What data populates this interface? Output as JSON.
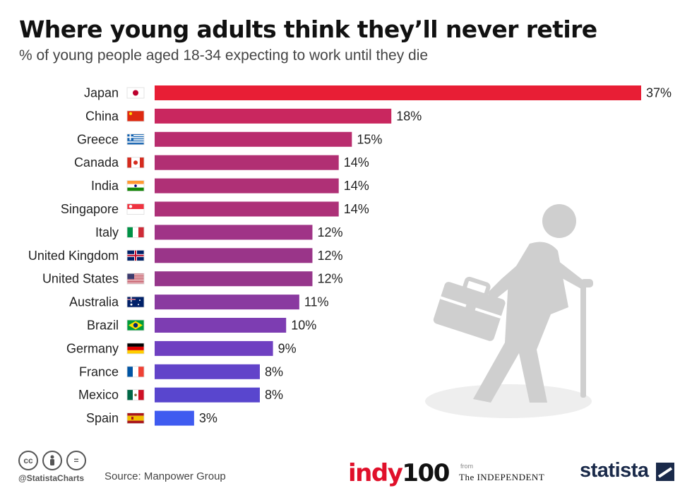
{
  "header": {
    "title": "Where young adults think they’ll never retire",
    "subtitle": "% of young people aged 18-34 expecting to work until they die"
  },
  "chart_data": {
    "type": "bar",
    "orientation": "horizontal",
    "title": "Where young adults think they’ll never retire",
    "subtitle": "% of young people aged 18-34 expecting to work until they die",
    "unit": "%",
    "xlim": [
      0,
      37
    ],
    "grid": false,
    "categories": [
      "Japan",
      "China",
      "Greece",
      "Canada",
      "India",
      "Singapore",
      "Italy",
      "United Kingdom",
      "United States",
      "Australia",
      "Brazil",
      "Germany",
      "France",
      "Mexico",
      "Spain"
    ],
    "values": [
      37,
      18,
      15,
      14,
      14,
      14,
      12,
      12,
      12,
      11,
      10,
      9,
      8,
      8,
      3
    ],
    "labels": [
      "37%",
      "18%",
      "15%",
      "14%",
      "14%",
      "14%",
      "12%",
      "12%",
      "12%",
      "11%",
      "10%",
      "9%",
      "8%",
      "8%",
      "3%"
    ],
    "flags": [
      "japan-flag-icon",
      "china-flag-icon",
      "greece-flag-icon",
      "canada-flag-icon",
      "india-flag-icon",
      "singapore-flag-icon",
      "italy-flag-icon",
      "uk-flag-icon",
      "us-flag-icon",
      "australia-flag-icon",
      "brazil-flag-icon",
      "germany-flag-icon",
      "france-flag-icon",
      "mexico-flag-icon",
      "spain-flag-icon"
    ],
    "colors": [
      "#e81e35",
      "#c9275f",
      "#b92d6e",
      "#b12f73",
      "#af3076",
      "#ad3178",
      "#a03487",
      "#9a3589",
      "#96368b",
      "#8a3aa0",
      "#7d3db2",
      "#6f40c1",
      "#6243c9",
      "#5946ce",
      "#3f5bf0"
    ]
  },
  "footer": {
    "cc_icons": [
      "cc",
      "by",
      "="
    ],
    "handle": "@StatistaCharts",
    "source": "Source: Manpower Group",
    "indy_text": "indy",
    "indy_num": "100",
    "from": "from",
    "independent": "The INDEPENDENT",
    "statista": "statista"
  }
}
